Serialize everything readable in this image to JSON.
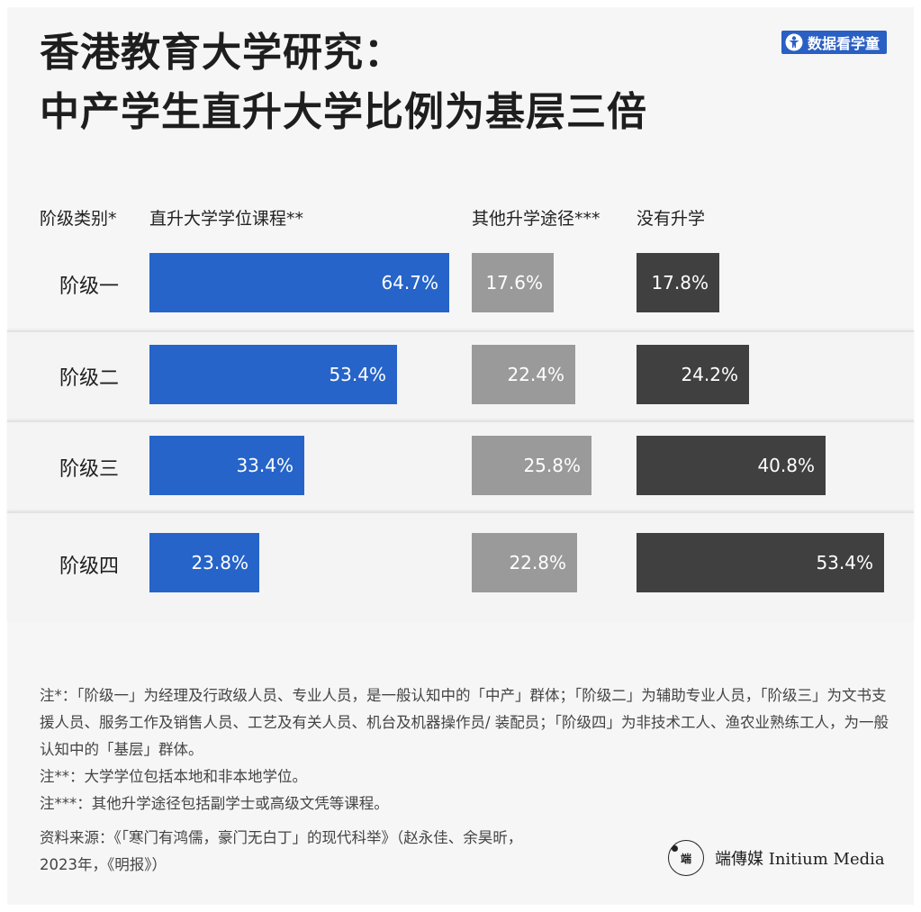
{
  "header": {
    "title_line1": "香港教育大学研究：",
    "title_line2": "中产学生直升大学比例为基层三倍",
    "brand_label": "数据看学童",
    "brand_icon": "person-icon"
  },
  "chart_data": {
    "type": "bar",
    "orientation": "horizontal",
    "category_header": "阶级类别*",
    "categories": [
      "阶级一",
      "阶级二",
      "阶级三",
      "阶级四"
    ],
    "series": [
      {
        "name": "直升大学学位课程**",
        "values": [
          64.7,
          53.4,
          33.4,
          23.8
        ],
        "labels": [
          "64.7%",
          "53.4%",
          "33.4%",
          "23.8%"
        ],
        "color": "#2664c9"
      },
      {
        "name": "其他升学途径***",
        "values": [
          17.6,
          22.4,
          25.8,
          22.8
        ],
        "labels": [
          "17.6%",
          "22.4%",
          "25.8%",
          "22.8%"
        ],
        "color": "#9a9a9a"
      },
      {
        "name": "没有升学",
        "values": [
          17.8,
          24.2,
          40.8,
          53.4
        ],
        "labels": [
          "17.8%",
          "24.2%",
          "40.8%",
          "53.4%"
        ],
        "color": "#404040"
      }
    ],
    "unit": "%",
    "xlim": [
      0,
      100
    ]
  },
  "notes": {
    "note1": "注*：「阶级一」为经理及行政级人员、专业人员，是一般认知中的「中产」群体；「阶级二」为辅助专业人员，「阶级三」为文书支援人员、服务工作及销售人员、工艺及有关人员、机台及机器操作员/ 装配员；「阶级四」为非技术工人、渔农业熟练工人，为一般认知中的「基层」群体。",
    "note2": "注**：大学学位包括本地和非本地学位。",
    "note3": "注***：其他升学途径包括副学士或高级文凭等课程。"
  },
  "source": {
    "line1": "资料来源：《「寒门有鸿儒，豪门无白丁」的现代科举》（赵永佳、余昊昕，",
    "line2": "2023年，《明报》）"
  },
  "logo": {
    "mark_text": "端",
    "name": "端傳媒 Initium Media"
  }
}
